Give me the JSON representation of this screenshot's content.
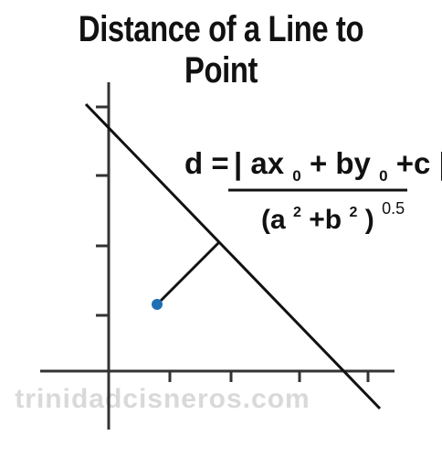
{
  "title": "Distance of a Line to Point",
  "formula": {
    "lhs": "d =",
    "numerator": {
      "bar_open": "|",
      "a_term": "ax",
      "a_sub": "0",
      "plus1": " + ",
      "b_term": "by",
      "b_sub": "0",
      "c_term": " +c",
      "bar_close": "|"
    },
    "denominator": {
      "open": "(a",
      "a_exp": "2",
      "plus": "+b",
      "b_exp": "2",
      "close": ")",
      "power": "0.5"
    }
  },
  "watermark": "trinidadcisneros.com",
  "colors": {
    "ink": "#111111",
    "point": "#1f6fb5",
    "watermark": "#d9d9d9"
  }
}
